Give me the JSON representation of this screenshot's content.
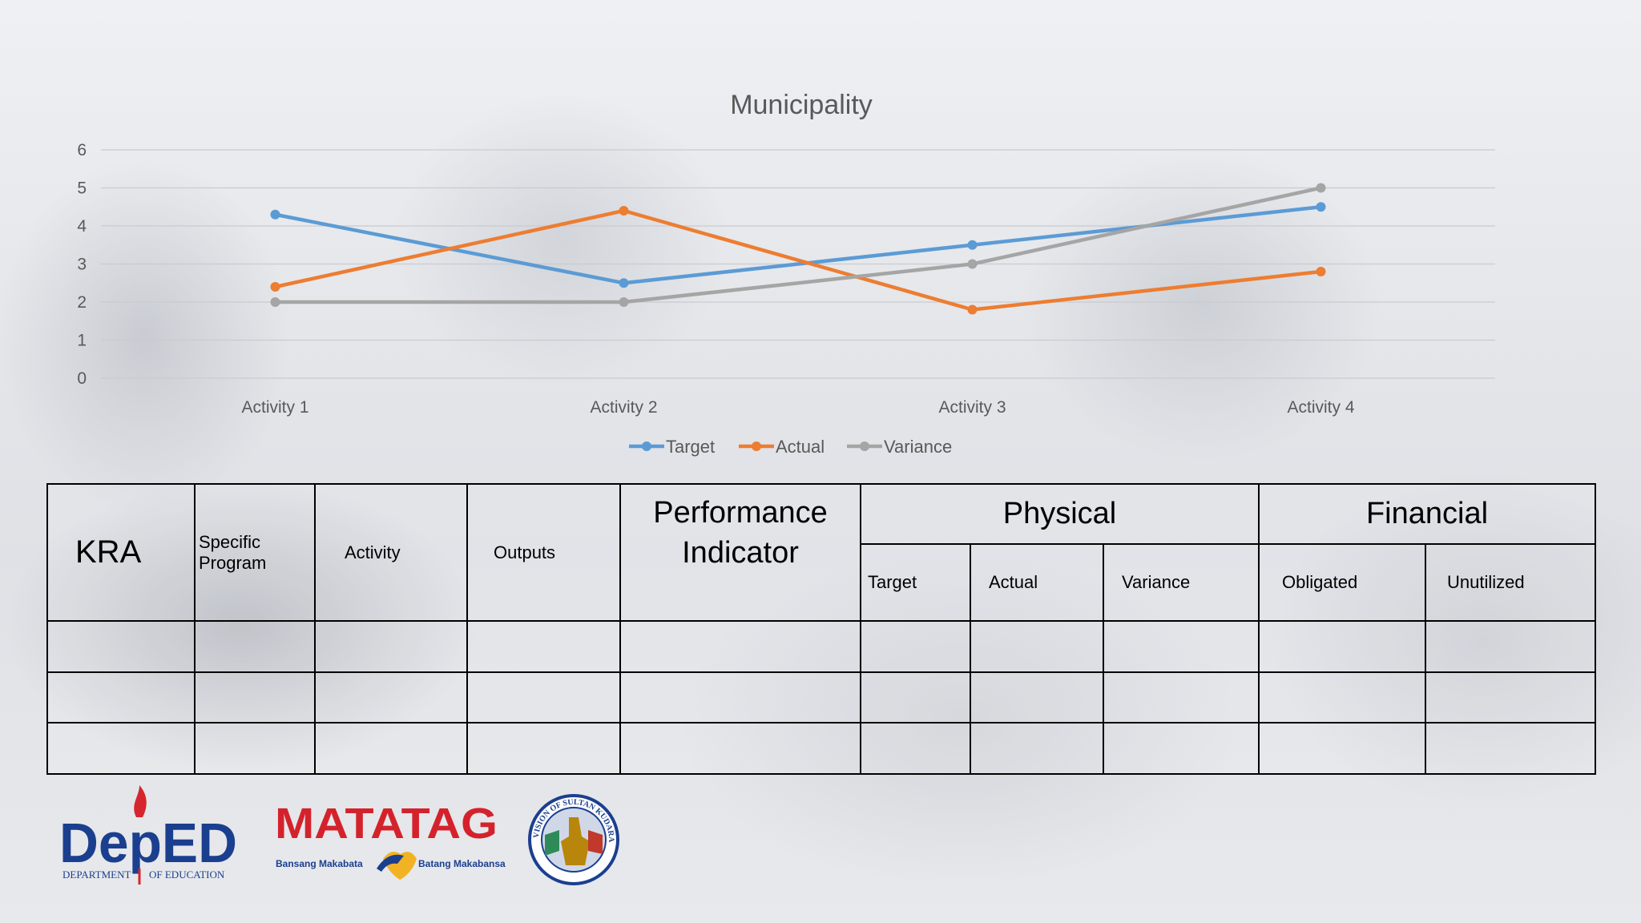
{
  "chart_data": {
    "type": "line",
    "title": "Municipality",
    "categories": [
      "Activity 1",
      "Activity 2",
      "Activity 3",
      "Activity 4"
    ],
    "ylim": [
      0,
      6
    ],
    "yticks": [
      0,
      1,
      2,
      3,
      4,
      5,
      6
    ],
    "grid": true,
    "legend": "bottom",
    "series": [
      {
        "name": "Target",
        "color": "#5b9bd5",
        "values": [
          4.3,
          2.5,
          3.5,
          4.5
        ]
      },
      {
        "name": "Actual",
        "color": "#ed7d31",
        "values": [
          2.4,
          4.4,
          1.8,
          2.8
        ]
      },
      {
        "name": "Variance",
        "color": "#a5a5a5",
        "values": [
          2,
          2,
          3,
          5
        ]
      }
    ]
  },
  "table": {
    "kra": "KRA",
    "specific_program_line1": "Specific",
    "specific_program_line2": "Program",
    "activity": "Activity",
    "outputs": "Outputs",
    "performance_line1": "Performance",
    "performance_line2": "Indicator",
    "physical": "Physical",
    "financial": "Financial",
    "sub_headers": [
      "Target",
      "Actual",
      "Variance",
      "Obligated",
      "Unutilized"
    ]
  },
  "logos": {
    "deped_wordmark": "DepED",
    "deped_caption_left": "DEPARTMENT",
    "deped_caption_right": "OF EDUCATION",
    "matatag_wordmark": "MATATAG",
    "matatag_left": "Bansang Makabata",
    "matatag_right": "Batang Makabansa",
    "seal_text": "DIVISION OF SULTAN KUDARAT",
    "colors": {
      "deped_blue": "#1b3f8f",
      "deped_red": "#d6262d",
      "matatag_red": "#d4222c"
    }
  }
}
